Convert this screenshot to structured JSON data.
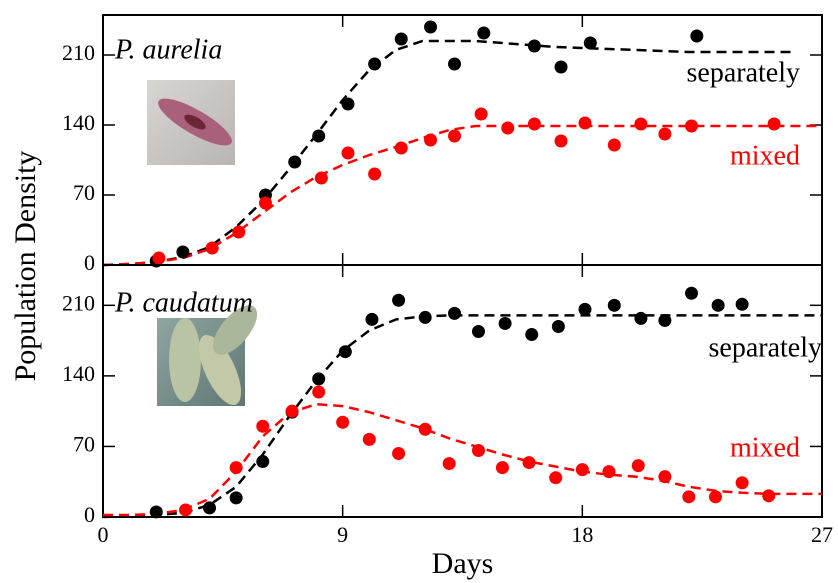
{
  "chart_data": [
    {
      "type": "scatter",
      "title": "P. aurelia",
      "ylabel": "Population Density",
      "xlim": [
        0,
        27
      ],
      "xticks": [
        0,
        9,
        18,
        27
      ],
      "ylim": [
        0,
        250
      ],
      "yticks": [
        0,
        70,
        140,
        210
      ],
      "series": [
        {
          "name": "separately",
          "color": "#000000",
          "x": [
            2,
            3,
            6.1,
            7.2,
            8.1,
            9.2,
            10.2,
            11.2,
            12.3,
            13.2,
            14.3,
            16.2,
            17.2,
            18.3,
            22.3
          ],
          "values": [
            4,
            13,
            70,
            103,
            129,
            161,
            201,
            226,
            238,
            201,
            232,
            219,
            198,
            222,
            229
          ]
        },
        {
          "name": "mixed",
          "color": "#ff0000",
          "x": [
            2.1,
            4.1,
            5.1,
            6.1,
            8.2,
            9.2,
            10.2,
            11.2,
            12.3,
            13.2,
            14.2,
            15.2,
            16.2,
            17.2,
            18.1,
            19.2,
            20.2,
            21.1,
            22.1,
            25.2
          ],
          "values": [
            7,
            17,
            33,
            62,
            87,
            112,
            91,
            117,
            125,
            129,
            151,
            137,
            141,
            124,
            142,
            120,
            141,
            131,
            139,
            141
          ]
        }
      ],
      "fits": [
        {
          "color": "#000000",
          "x": [
            0,
            1,
            2,
            3,
            4,
            5,
            6,
            7,
            8,
            9,
            10,
            11,
            12,
            13,
            14,
            15,
            16,
            17,
            18,
            19,
            20,
            21,
            22,
            23,
            24,
            25,
            26
          ],
          "values": [
            0,
            1,
            3,
            8,
            18,
            38,
            64,
            96,
            130,
            165,
            195,
            215,
            224,
            224,
            224,
            222,
            220,
            218,
            217,
            216,
            215,
            214,
            213,
            213,
            213,
            213,
            213
          ]
        },
        {
          "color": "#ff0000",
          "x": [
            0,
            1,
            2,
            3,
            4,
            5,
            6,
            7,
            8,
            9,
            10,
            11,
            12,
            13,
            14,
            15,
            16,
            17,
            18,
            19,
            20,
            21,
            22,
            23,
            24,
            25,
            26,
            27
          ],
          "values": [
            0,
            1,
            3,
            7,
            16,
            32,
            52,
            72,
            88,
            100,
            110,
            118,
            127,
            135,
            139,
            139,
            139,
            139,
            139,
            139,
            139,
            139,
            139,
            139,
            139,
            139,
            139,
            139
          ]
        }
      ]
    },
    {
      "type": "scatter",
      "title": "P. caudatum",
      "xlabel": "Days",
      "xlim": [
        0,
        27
      ],
      "xticks": [
        0,
        9,
        18,
        27
      ],
      "ylim": [
        0,
        250
      ],
      "yticks": [
        0,
        70,
        140,
        210
      ],
      "series": [
        {
          "name": "separately",
          "color": "#000000",
          "x": [
            2,
            4,
            5,
            6,
            7.1,
            8.1,
            9.1,
            10.1,
            11.1,
            12.1,
            13.2,
            14.1,
            15.1,
            16.1,
            17.1,
            18.1,
            19.2,
            20.2,
            21.1,
            22.1,
            23.1,
            24
          ],
          "values": [
            5,
            9,
            19,
            55,
            104,
            137,
            164,
            196,
            215,
            198,
            202,
            184,
            192,
            181,
            189,
            206,
            210,
            197,
            195,
            222,
            210,
            211
          ]
        },
        {
          "name": "mixed",
          "color": "#ff0000",
          "x": [
            3.1,
            5,
            6,
            7.1,
            8.1,
            9,
            10,
            11.1,
            12.1,
            13,
            14.1,
            15,
            16,
            17,
            18,
            19,
            20.1,
            21.1,
            22,
            23,
            24,
            25
          ],
          "values": [
            7,
            49,
            90,
            105,
            124,
            94,
            77,
            63,
            87,
            53,
            66,
            49,
            54,
            39,
            47,
            45,
            51,
            40,
            20,
            20,
            34,
            21
          ]
        }
      ],
      "fits": [
        {
          "color": "#000000",
          "x": [
            0,
            1,
            2,
            3,
            4,
            5,
            6,
            7,
            8,
            9,
            10,
            11,
            12,
            13,
            14,
            15,
            16,
            17,
            18,
            19,
            20,
            21,
            22,
            23,
            24,
            25,
            26,
            27
          ],
          "values": [
            0,
            1,
            2,
            4,
            12,
            30,
            62,
            100,
            135,
            165,
            185,
            196,
            199,
            200,
            200,
            200,
            200,
            200,
            200,
            200,
            200,
            200,
            200,
            200,
            200,
            200,
            200,
            200
          ]
        },
        {
          "color": "#ff0000",
          "x": [
            0,
            1,
            2,
            3,
            4,
            5,
            6,
            7,
            8,
            9,
            10,
            11,
            12,
            13,
            14,
            15,
            16,
            17,
            18,
            19,
            20,
            21,
            22,
            23,
            24,
            25,
            26,
            27
          ],
          "values": [
            2,
            2,
            3,
            7,
            18,
            45,
            80,
            103,
            112,
            110,
            104,
            96,
            88,
            78,
            70,
            62,
            55,
            50,
            45,
            42,
            40,
            36,
            30,
            26,
            24,
            23,
            23,
            23
          ]
        }
      ]
    }
  ]
}
